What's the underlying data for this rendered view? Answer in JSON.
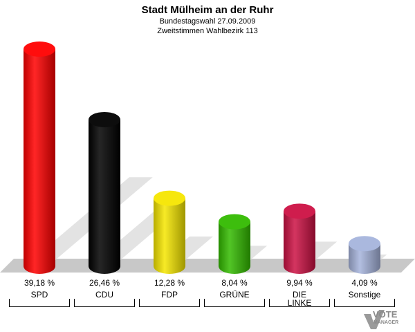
{
  "chart_data": {
    "type": "bar",
    "title": "Stadt Mülheim an der Ruhr",
    "subtitle_1": "Bundestagswahl 27.09.2009",
    "subtitle_2": "Zweitstimmen Wahlbezirk 113",
    "categories": [
      "SPD",
      "CDU",
      "FDP",
      "GRÜNE",
      "DIE LINKE",
      "Sonstige"
    ],
    "category_lines": [
      [
        "SPD"
      ],
      [
        "CDU"
      ],
      [
        "FDP"
      ],
      [
        "GRÜNE"
      ],
      [
        "DIE",
        "LINKE"
      ],
      [
        "Sonstige"
      ]
    ],
    "values": [
      39.18,
      26.46,
      12.28,
      8.04,
      9.94,
      4.09
    ],
    "value_labels": [
      "39,18 %",
      "26,46 %",
      "12,28 %",
      "8,04 %",
      "9,94 %",
      "4,09 %"
    ],
    "colors": [
      "#ff0000",
      "#000000",
      "#f5e600",
      "#33bb00",
      "#cc1144",
      "#a6b4dc"
    ],
    "ylim": [
      0,
      40
    ],
    "grid": false,
    "legend": "none"
  },
  "logo": {
    "text_main": "VOTE",
    "text_sub": "MANAGER"
  }
}
